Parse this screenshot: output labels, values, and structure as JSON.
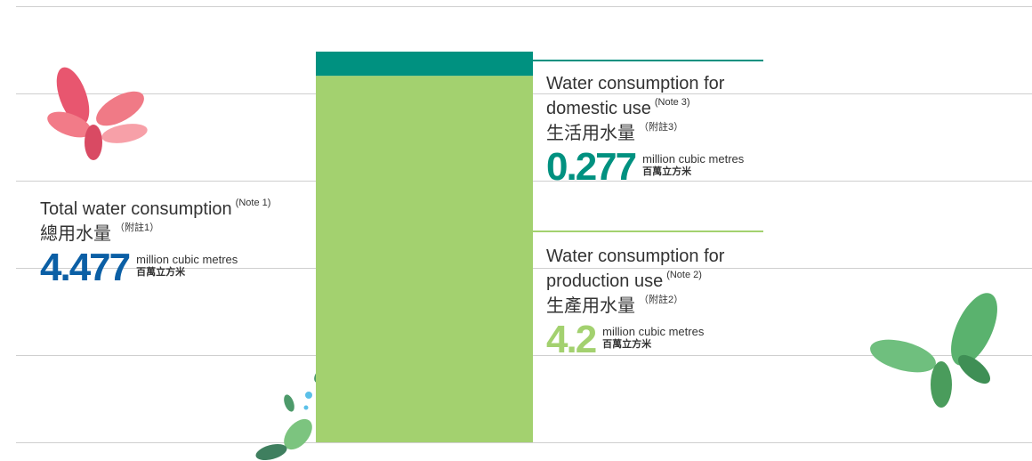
{
  "chart_data": {
    "type": "stacked-bar",
    "unit": "million cubic metres",
    "unit_zh": "百萬立方米",
    "total": {
      "name": "Total water consumption",
      "note": "(Note 1)",
      "name_zh": "總用水量",
      "note_zh": "（附註1）",
      "value": 4.477,
      "color": "#0b5fa5"
    },
    "series": [
      {
        "name": "Water consumption for production use",
        "note": "(Note 2)",
        "name_zh": "生產用水量",
        "note_zh": "（附註2）",
        "values": [
          4.2
        ],
        "color": "#a3d16f"
      },
      {
        "name": "Water consumption for domestic use",
        "note": "(Note 3)",
        "name_zh": "生活用水量",
        "note_zh": "（附註3）",
        "values": [
          0.277
        ],
        "color": "#009180"
      }
    ]
  }
}
